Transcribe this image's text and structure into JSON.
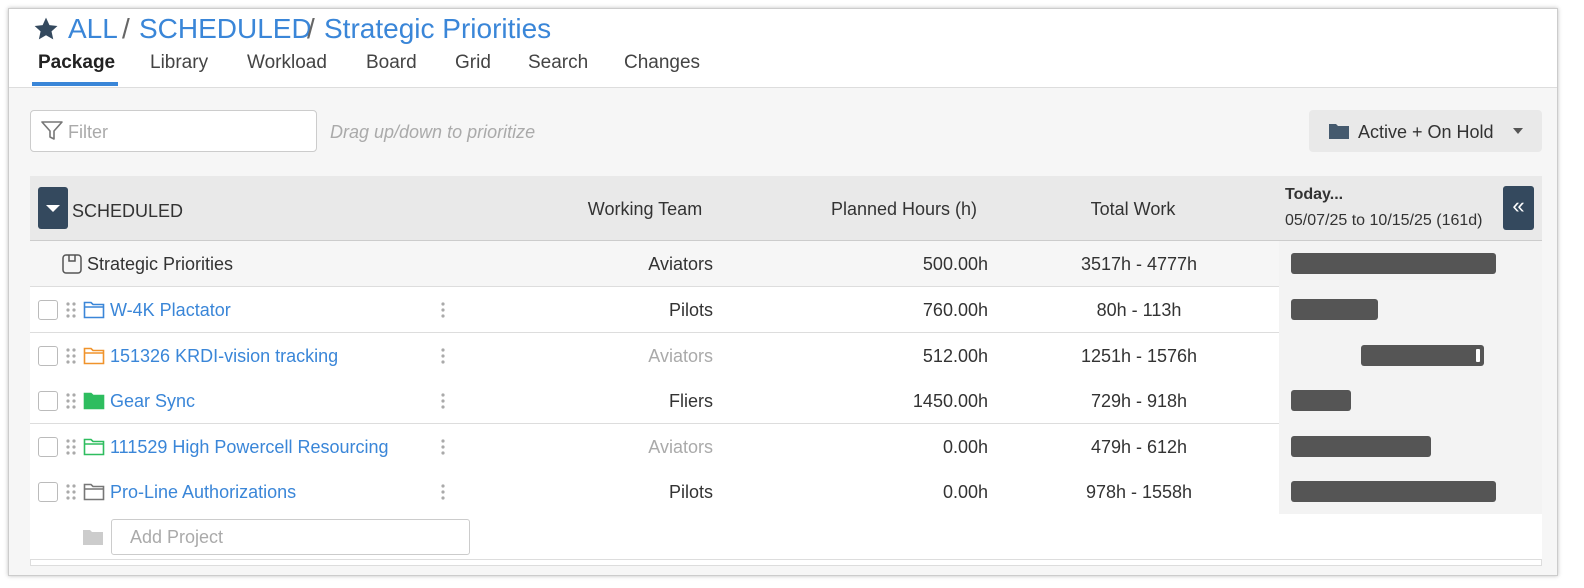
{
  "breadcrumb": {
    "items": [
      "ALL",
      "SCHEDULED",
      "Strategic Priorities"
    ],
    "separator": "/"
  },
  "tabs": [
    "Package",
    "Library",
    "Workload",
    "Board",
    "Grid",
    "Search",
    "Changes"
  ],
  "toolbar": {
    "filter_placeholder": "Filter",
    "hint": "Drag up/down to prioritize",
    "status_button": "Active + On Hold"
  },
  "table": {
    "header": {
      "group": "SCHEDULED",
      "columns": [
        "Working Team",
        "Planned Hours (h)",
        "Total Work"
      ],
      "timeline_title": "Today...",
      "timeline_range": "05/07/25 to 10/15/25 (161d)"
    },
    "parent": {
      "name": "Strategic Priorities",
      "team": "Aviators",
      "hours": "500.00h",
      "work": "3517h - 4777h"
    },
    "rows": [
      [
        "W-4K Plactator",
        "Pilots",
        "760.00h",
        "80h - 113h"
      ],
      [
        "151326 KRDI-vision tracking",
        "Aviators",
        "512.00h",
        "1251h - 1576h"
      ],
      [
        "Gear Sync",
        "Fliers",
        "1450.00h",
        "729h - 918h"
      ],
      [
        "111529 High Powercell Resourcing",
        "Aviators",
        "0.00h",
        "479h - 612h"
      ],
      [
        "Pro-Line Authorizations",
        "Pilots",
        "0.00h",
        "978h - 1558h"
      ]
    ],
    "add_placeholder": "Add Project"
  }
}
